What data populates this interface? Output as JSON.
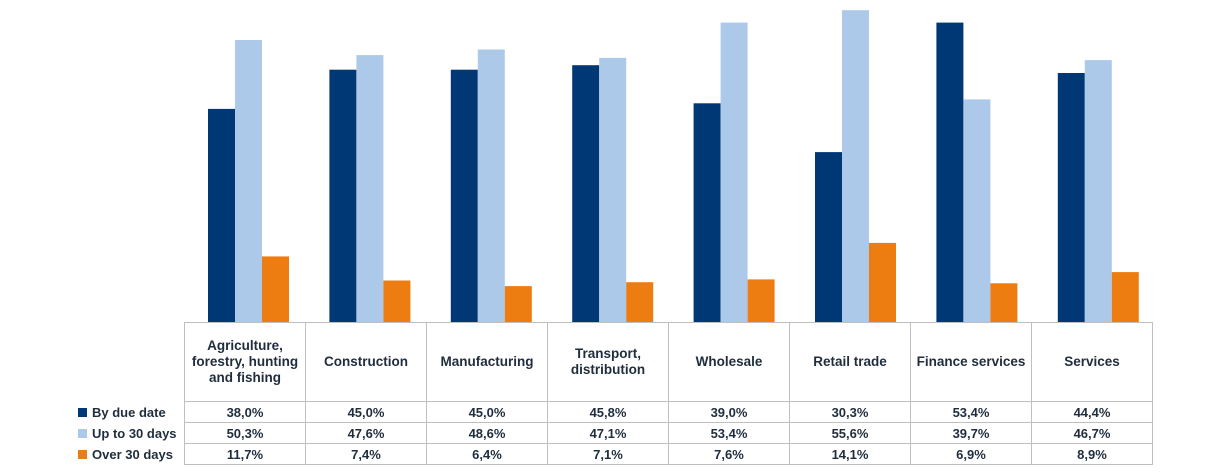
{
  "chart_data": {
    "type": "bar",
    "categories": [
      "Agriculture, forestry, hunting and fishing",
      "Construction",
      "Manufacturing",
      "Transport, distribution",
      "Wholesale",
      "Retail trade",
      "Finance services",
      "Services"
    ],
    "series": [
      {
        "name": "By due date",
        "color": "#003876",
        "values": [
          38.0,
          45.0,
          45.0,
          45.8,
          39.0,
          30.3,
          53.4,
          44.4
        ],
        "labels": [
          "38,0%",
          "45,0%",
          "45,0%",
          "45,8%",
          "39,0%",
          "30,3%",
          "53,4%",
          "44,4%"
        ]
      },
      {
        "name": "Up to 30 days",
        "color": "#adc9ea",
        "values": [
          50.3,
          47.6,
          48.6,
          47.1,
          53.4,
          55.6,
          39.7,
          46.7
        ],
        "labels": [
          "50,3%",
          "47,6%",
          "48,6%",
          "47,1%",
          "53,4%",
          "55,6%",
          "39,7%",
          "46,7%"
        ]
      },
      {
        "name": "Over 30 days",
        "color": "#ee7d11",
        "values": [
          11.7,
          7.4,
          6.4,
          7.1,
          7.6,
          14.1,
          6.9,
          8.9
        ],
        "labels": [
          "11,7%",
          "7,4%",
          "6,4%",
          "7,1%",
          "7,6%",
          "14,1%",
          "6,9%",
          "8,9%"
        ]
      }
    ],
    "ylim": [
      0,
      56
    ],
    "legend": "data-table"
  }
}
